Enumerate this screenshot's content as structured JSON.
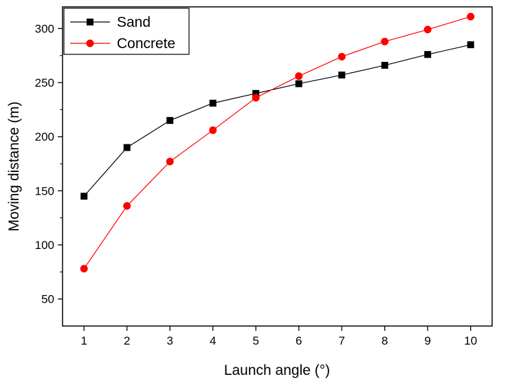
{
  "chart_data": {
    "type": "line",
    "title": "",
    "xlabel": "Launch angle (°)",
    "ylabel": "Moving distance (m)",
    "x": [
      1,
      2,
      3,
      4,
      5,
      6,
      7,
      8,
      9,
      10
    ],
    "xlim": [
      0.5,
      10.5
    ],
    "ylim": [
      25,
      320
    ],
    "xticks": [
      "1",
      "2",
      "3",
      "4",
      "5",
      "6",
      "7",
      "8",
      "9",
      "10"
    ],
    "yticks": [
      "50",
      "100",
      "150",
      "200",
      "250",
      "300"
    ],
    "ytick_values": [
      50,
      100,
      150,
      200,
      250,
      300
    ],
    "grid": false,
    "legend_position": "top-left",
    "series": [
      {
        "name": "Sand",
        "marker": "square",
        "color": "#000000",
        "values": [
          145,
          190,
          215,
          231,
          240,
          249,
          257,
          266,
          276,
          285
        ]
      },
      {
        "name": "Concrete",
        "marker": "circle",
        "color": "#ff0000",
        "values": [
          78,
          136,
          177,
          206,
          236,
          256,
          274,
          288,
          299,
          311
        ]
      }
    ]
  }
}
